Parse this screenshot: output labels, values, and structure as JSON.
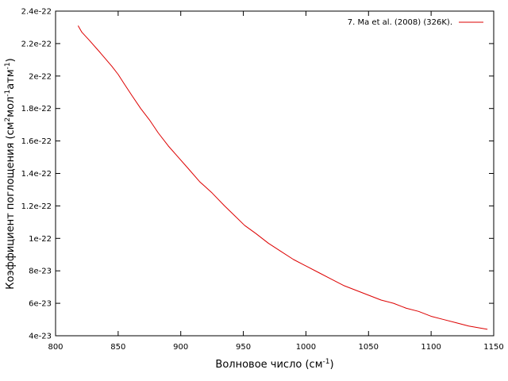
{
  "chart_data": {
    "type": "line",
    "title": "",
    "xlabel": {
      "main": "Волновое число (см",
      "sup": "-1",
      "tail": ")"
    },
    "ylabel": {
      "p1": "Коэффициент поглощения (см",
      "s1": "2",
      "p2": "мол",
      "s2": "-1",
      "p3": "атм",
      "s3": "-1",
      "p4": ")"
    },
    "xlim": [
      800,
      1150
    ],
    "ylim": [
      4e-23,
      2.4e-22
    ],
    "x_ticks": [
      800,
      850,
      900,
      950,
      1000,
      1050,
      1100,
      1150
    ],
    "x_tick_labels": [
      "800",
      "850",
      "900",
      "950",
      "1000",
      "1050",
      "1100",
      "1150"
    ],
    "y_ticks": [
      4e-23,
      6e-23,
      8e-23,
      1e-22,
      1.2e-22,
      1.4e-22,
      1.6e-22,
      1.8e-22,
      2e-22,
      2.2e-22,
      2.4e-22
    ],
    "y_tick_labels": [
      "4e-23",
      "6e-23",
      "8e-23",
      "1e-22",
      "1.2e-22",
      "1.4e-22",
      "1.6e-22",
      "1.8e-22",
      "2e-22",
      "2.2e-22",
      "2.4e-22"
    ],
    "grid": false,
    "legend_position": "top-right",
    "series": [
      {
        "name": "7. Ma et al. (2008) (326K).",
        "color": "#dd0000",
        "x": [
          818,
          821,
          827,
          835,
          845,
          850,
          855,
          861,
          868,
          875,
          882,
          890,
          898,
          906,
          915,
          925,
          935,
          943,
          951,
          960,
          970,
          980,
          990,
          1000,
          1010,
          1020,
          1030,
          1040,
          1050,
          1060,
          1070,
          1080,
          1090,
          1100,
          1110,
          1120,
          1130,
          1145
        ],
        "y": [
          2.31e-22,
          2.27e-22,
          2.22e-22,
          2.15e-22,
          2.06e-22,
          2.01e-22,
          1.95e-22,
          1.88e-22,
          1.8e-22,
          1.73e-22,
          1.65e-22,
          1.57e-22,
          1.5e-22,
          1.43e-22,
          1.35e-22,
          1.28e-22,
          1.2e-22,
          1.14e-22,
          1.08e-22,
          1.03e-22,
          9.7e-23,
          9.2e-23,
          8.7e-23,
          8.3e-23,
          7.9e-23,
          7.5e-23,
          7.1e-23,
          6.8e-23,
          6.5e-23,
          6.2e-23,
          6e-23,
          5.7e-23,
          5.5e-23,
          5.2e-23,
          5e-23,
          4.8e-23,
          4.6e-23,
          4.4e-23
        ]
      }
    ]
  }
}
